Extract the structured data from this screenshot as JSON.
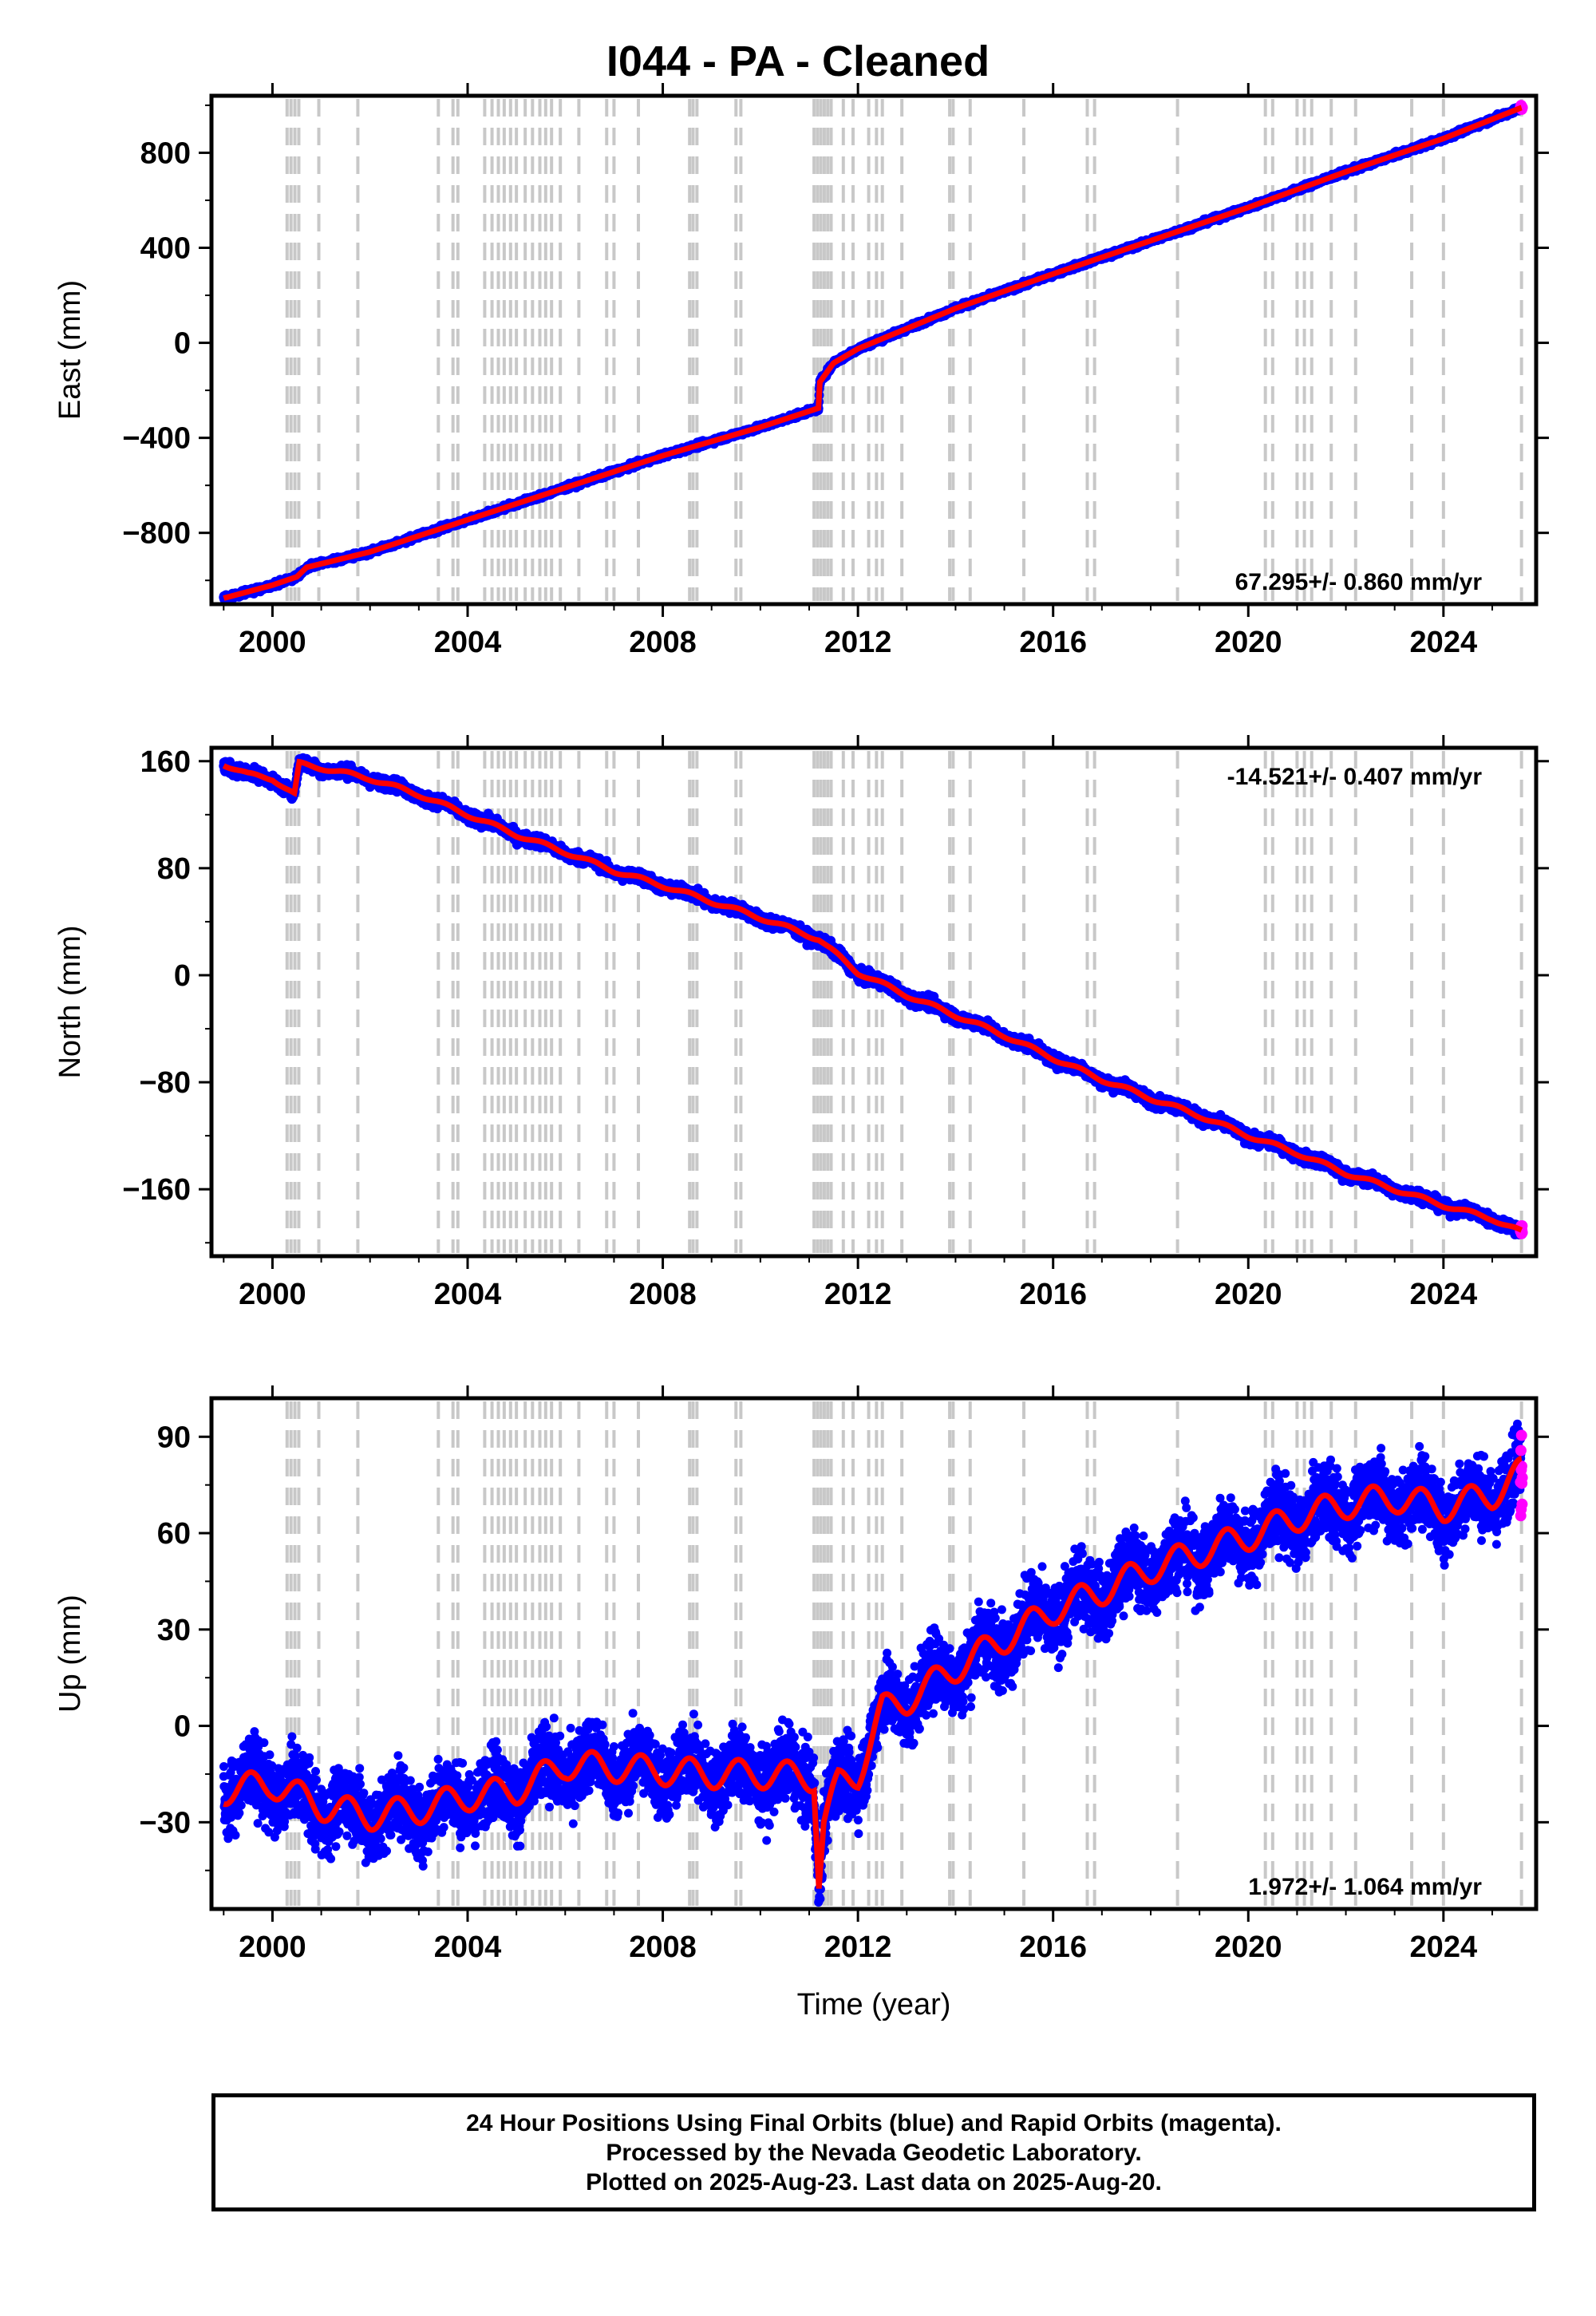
{
  "title": "I044  - PA - Cleaned",
  "x_label": "Time (year)",
  "footer": {
    "line1": "24 Hour Positions Using Final Orbits (blue) and Rapid Orbits (magenta).",
    "line2": "Processed by the Nevada Geodetic Laboratory.",
    "line3": "Plotted on 2025-Aug-23. Last data on 2025-Aug-20."
  },
  "colors": {
    "final_orbits": "#0000ff",
    "rapid_orbits": "#ff00ff",
    "model": "#ff0000",
    "event_lines": "#c8c8c8"
  },
  "chart_data": [
    {
      "type": "scatter",
      "ylabel": "East (mm)",
      "rate_text": "67.295+/- 0.860 mm/yr",
      "rate_position": "bottom-right",
      "xlim": [
        1998.75,
        2025.9
      ],
      "ylim": [
        -1100,
        1040
      ],
      "xticks": [
        2000,
        2004,
        2008,
        2012,
        2016,
        2020,
        2024
      ],
      "yticks": [
        -800,
        -400,
        0,
        400,
        800
      ],
      "ytick_labels": [
        "−800",
        "−400",
        "0",
        "400",
        "800"
      ],
      "series": [
        {
          "color": "final_orbits",
          "x": [
            1999.0,
            2000.0,
            2000.5,
            2000.7,
            2002.0,
            2004.0,
            2006.0,
            2008.0,
            2010.0,
            2011.19,
            2011.22,
            2011.5,
            2012.0,
            2013.0,
            2014.0,
            2016.0,
            2018.0,
            2020.0,
            2022.0,
            2024.0,
            2025.6
          ],
          "y": [
            -1075,
            -1020,
            -985,
            -945,
            -880,
            -745,
            -610,
            -475,
            -355,
            -275,
            -165,
            -85,
            -25,
            60,
            145,
            290,
            430,
            570,
            720,
            860,
            990
          ]
        }
      ]
    },
    {
      "type": "scatter",
      "ylabel": "North (mm)",
      "rate_text": "-14.521+/- 0.407 mm/yr",
      "rate_position": "top-right",
      "xlim": [
        1998.75,
        2025.9
      ],
      "ylim": [
        -210,
        170
      ],
      "xticks": [
        2000,
        2004,
        2008,
        2012,
        2016,
        2020,
        2024
      ],
      "yticks": [
        -160,
        -80,
        0,
        80,
        160
      ],
      "ytick_labels": [
        "−160",
        "−80",
        "0",
        "80",
        "160"
      ],
      "series": [
        {
          "color": "final_orbits",
          "x": [
            1999.0,
            1999.5,
            2000.0,
            2000.45,
            2000.55,
            2001.0,
            2002.0,
            2003.0,
            2004.0,
            2005.0,
            2006.0,
            2007.0,
            2008.0,
            2009.0,
            2010.0,
            2011.2,
            2011.35,
            2012.0,
            2013.0,
            2014.0,
            2015.0,
            2016.0,
            2017.0,
            2018.0,
            2019.0,
            2020.0,
            2021.0,
            2022.0,
            2023.0,
            2024.0,
            2025.0,
            2025.6
          ],
          "y": [
            158,
            150,
            147,
            135,
            158,
            155,
            147,
            135,
            120,
            105,
            92,
            78,
            67,
            55,
            43,
            27,
            22,
            2,
            -15,
            -30,
            -45,
            -62,
            -78,
            -92,
            -105,
            -120,
            -133,
            -148,
            -160,
            -172,
            -182,
            -192
          ]
        }
      ]
    },
    {
      "type": "scatter",
      "ylabel": "Up (mm)",
      "rate_text": "1.972+/- 1.064 mm/yr",
      "rate_position": "bottom-right",
      "xlim": [
        1998.75,
        2025.9
      ],
      "ylim": [
        -57,
        102
      ],
      "xticks": [
        2000,
        2004,
        2008,
        2012,
        2016,
        2020,
        2024
      ],
      "yticks": [
        -30,
        0,
        30,
        60,
        90
      ],
      "ytick_labels": [
        "−30",
        "0",
        "30",
        "60",
        "90"
      ],
      "series": [
        {
          "color": "final_orbits",
          "x": [
            1999.0,
            2000.0,
            2001.0,
            2002.0,
            2003.0,
            2004.0,
            2005.0,
            2006.0,
            2007.0,
            2008.0,
            2009.0,
            2010.0,
            2011.1,
            2011.2,
            2011.3,
            2011.6,
            2012.0,
            2012.5,
            2013.0,
            2014.0,
            2015.0,
            2016.0,
            2017.0,
            2018.0,
            2019.0,
            2020.0,
            2021.0,
            2022.0,
            2023.0,
            2024.0,
            2025.0,
            2025.6
          ],
          "y": [
            -20,
            -18,
            -25,
            -28,
            -26,
            -22,
            -20,
            -12,
            -13,
            -14,
            -15,
            -15,
            -16,
            -48,
            -30,
            -18,
            -15,
            5,
            8,
            18,
            27,
            36,
            42,
            49,
            54,
            59,
            65,
            69,
            71,
            68,
            72,
            79
          ]
        }
      ]
    }
  ],
  "event_lines_x": [
    2000.3,
    2000.38,
    2000.46,
    2000.54,
    2000.95,
    2001.75,
    2003.4,
    2003.7,
    2003.8,
    2004.35,
    2004.5,
    2004.63,
    2004.75,
    2004.88,
    2005.0,
    2005.18,
    2005.33,
    2005.48,
    2005.6,
    2005.72,
    2005.9,
    2006.28,
    2006.85,
    2007.0,
    2007.5,
    2008.55,
    2008.62,
    2008.7,
    2009.5,
    2009.6,
    2011.1,
    2011.17,
    2011.24,
    2011.31,
    2011.38,
    2011.45,
    2011.7,
    2011.9,
    2012.22,
    2012.38,
    2012.5,
    2012.9,
    2013.88,
    2013.95,
    2014.3,
    2015.4,
    2016.7,
    2016.85,
    2018.55,
    2020.35,
    2020.5,
    2021.0,
    2021.15,
    2021.3,
    2021.7,
    2022.2,
    2023.35,
    2024.0,
    2025.6
  ]
}
